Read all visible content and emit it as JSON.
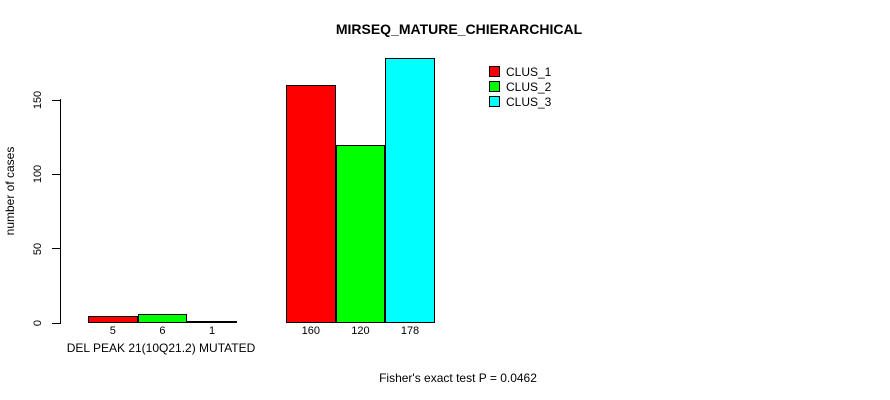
{
  "chart_data": {
    "type": "bar",
    "title": "MIRSEQ_MATURE_CHIERARCHICAL",
    "ylabel": "number of cases",
    "xlabel": "DEL PEAK 21(10Q21.2) MUTATED",
    "annotation": "Fisher's exact test P = 0.0462",
    "ylim": [
      0,
      178
    ],
    "yticks": [
      0,
      50,
      100,
      150
    ],
    "grid": false,
    "legend_position": "top-right-inside",
    "legend": [
      {
        "label": "CLUS_1",
        "color": "#FF0000"
      },
      {
        "label": "CLUS_2",
        "color": "#00FF00"
      },
      {
        "label": "CLUS_3",
        "color": "#00FFFF"
      }
    ],
    "groups": [
      {
        "values": [
          5,
          6,
          1
        ],
        "bar_labels": [
          "5",
          "6",
          "1"
        ]
      },
      {
        "values": [
          160,
          120,
          178
        ],
        "bar_labels": [
          "160",
          "120",
          "178"
        ]
      }
    ]
  }
}
